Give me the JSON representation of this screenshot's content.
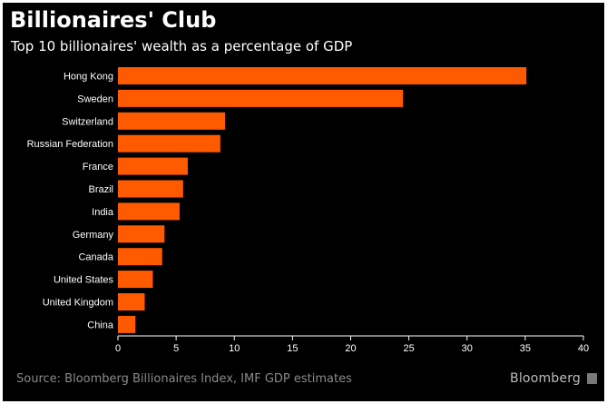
{
  "title": "Billionaires' Club",
  "subtitle": "Top 10 billionaires' wealth as a percentage of GDP",
  "footer": {
    "source": "Source: Bloomberg Billionaires Index, IMF GDP estimates",
    "brand": "Bloomberg"
  },
  "colors": {
    "bar": "#ff5a00",
    "background": "#000000",
    "axis": "#ffffff",
    "tick_text": "#ffffff",
    "footer_text": "#8a8a8a"
  },
  "chart_data": {
    "type": "bar",
    "orientation": "horizontal",
    "categories": [
      "Hong Kong",
      "Sweden",
      "Switzerland",
      "Russian Federation",
      "France",
      "Brazil",
      "India",
      "Germany",
      "Canada",
      "United States",
      "United Kingdom",
      "China"
    ],
    "values": [
      35.1,
      24.5,
      9.2,
      8.8,
      6.0,
      5.6,
      5.3,
      4.0,
      3.8,
      3.0,
      2.3,
      1.5
    ],
    "title": "Billionaires' Club",
    "subtitle": "Top 10 billionaires' wealth as a percentage of GDP",
    "xlabel": "",
    "ylabel": "",
    "xlim": [
      0,
      40
    ],
    "xticks": [
      "0",
      "5",
      "10",
      "15",
      "20",
      "25",
      "30",
      "35",
      "40"
    ],
    "grid": false,
    "legend": "none"
  }
}
